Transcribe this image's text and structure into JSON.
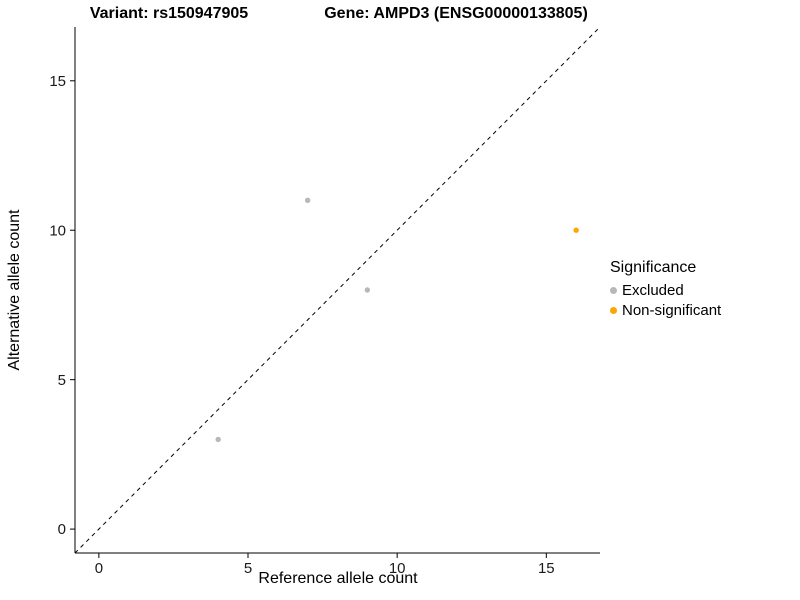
{
  "titles": {
    "variant": "Variant: rs150947905",
    "gene": "Gene: AMPD3 (ENSG00000133805)"
  },
  "chart_data": {
    "type": "scatter",
    "title": "Variant: rs150947905   Gene: AMPD3 (ENSG00000133805)",
    "xlabel": "Reference allele count",
    "ylabel": "Alternative allele count",
    "xlim": [
      -0.8,
      16.8
    ],
    "ylim": [
      -0.8,
      16.8
    ],
    "xticks": [
      0,
      5,
      10,
      15
    ],
    "yticks": [
      0,
      5,
      10,
      15
    ],
    "grid": false,
    "identity_line": {
      "style": "dashed",
      "color": "#000000",
      "from": [
        -0.8,
        -0.8
      ],
      "to": [
        16.8,
        16.8
      ]
    },
    "legend": {
      "title": "Significance",
      "position": "right",
      "entries": [
        {
          "label": "Excluded",
          "color": "#b8b8b8"
        },
        {
          "label": "Non-significant",
          "color": "#ffa500"
        }
      ]
    },
    "series": [
      {
        "name": "Excluded",
        "color": "#b8b8b8",
        "points": [
          {
            "x": 4,
            "y": 3
          },
          {
            "x": 7,
            "y": 11
          },
          {
            "x": 9,
            "y": 8
          }
        ]
      },
      {
        "name": "Non-significant",
        "color": "#ffa500",
        "points": [
          {
            "x": 16,
            "y": 10
          }
        ]
      }
    ]
  }
}
